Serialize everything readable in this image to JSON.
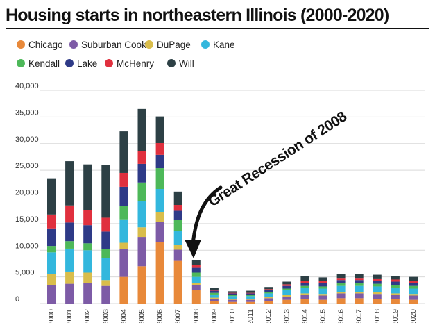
{
  "chart_data": {
    "type": "bar",
    "stacked": true,
    "title": "Housing starts in northeastern Illinois (2000-2020)",
    "xlabel": "",
    "ylabel": "",
    "ylim": [
      0,
      40000
    ],
    "yticks": [
      {
        "value": 0,
        "label": "0"
      },
      {
        "value": 5000,
        "label": "5,000"
      },
      {
        "value": 10000,
        "label": "10,000"
      },
      {
        "value": 15000,
        "label": "15,000"
      },
      {
        "value": 20000,
        "label": "20,000"
      },
      {
        "value": 25000,
        "label": "25,000"
      },
      {
        "value": 30000,
        "label": "30,000"
      },
      {
        "value": 35000,
        "label": "35,000"
      },
      {
        "value": 40000,
        "label": "40,000"
      }
    ],
    "grid": true,
    "legend_position": "top",
    "categories": [
      "2000",
      "2001",
      "2002",
      "2003",
      "2004",
      "2005",
      "2006",
      "2007",
      "2008",
      "2009",
      "2010",
      "2011",
      "2012",
      "2013",
      "2014",
      "2015",
      "2016",
      "2017",
      "2018",
      "2019",
      "2020"
    ],
    "series": [
      {
        "name": "Chicago",
        "color": "#E8893A",
        "values": [
          0,
          0,
          0,
          0,
          5000,
          7000,
          11500,
          8000,
          2500,
          500,
          300,
          300,
          500,
          700,
          800,
          700,
          1000,
          1000,
          900,
          800,
          700
        ]
      },
      {
        "name": "Suburban Cook",
        "color": "#7D5BA6",
        "values": [
          3400,
          3700,
          3800,
          3300,
          5200,
          5500,
          3800,
          2100,
          900,
          400,
          400,
          400,
          500,
          600,
          800,
          800,
          900,
          900,
          900,
          800,
          800
        ]
      },
      {
        "name": "DuPage",
        "color": "#D9BD4B",
        "values": [
          2200,
          2300,
          2000,
          1100,
          1200,
          1800,
          1900,
          900,
          400,
          200,
          200,
          200,
          200,
          300,
          300,
          300,
          300,
          300,
          300,
          300,
          300
        ]
      },
      {
        "name": "Kane",
        "color": "#33B7DD",
        "values": [
          4000,
          4300,
          4200,
          4100,
          4400,
          4900,
          4300,
          2600,
          1200,
          600,
          500,
          500,
          700,
          900,
          1000,
          1000,
          1100,
          1100,
          1100,
          1100,
          1000
        ]
      },
      {
        "name": "Kendall",
        "color": "#4DB859",
        "values": [
          1200,
          1400,
          1300,
          1700,
          2500,
          3500,
          3900,
          2100,
          800,
          300,
          200,
          200,
          200,
          300,
          400,
          400,
          500,
          500,
          500,
          500,
          500
        ]
      },
      {
        "name": "Lake",
        "color": "#2E3A87",
        "values": [
          3300,
          3500,
          3400,
          3300,
          3600,
          3500,
          2500,
          1700,
          900,
          400,
          300,
          300,
          400,
          500,
          600,
          600,
          600,
          600,
          600,
          600,
          600
        ]
      },
      {
        "name": "McHenry",
        "color": "#E0303E",
        "values": [
          2600,
          3200,
          2800,
          2600,
          2600,
          2400,
          2200,
          1100,
          500,
          200,
          100,
          100,
          200,
          300,
          400,
          400,
          400,
          400,
          400,
          400,
          400
        ]
      },
      {
        "name": "Will",
        "color": "#2D4045",
        "values": [
          6800,
          8300,
          8600,
          9900,
          7800,
          7900,
          5000,
          2500,
          900,
          300,
          300,
          400,
          400,
          500,
          800,
          700,
          700,
          700,
          700,
          700,
          700
        ]
      }
    ],
    "annotations": [
      {
        "text": "Great Recession of 2008",
        "target_category": "2008"
      }
    ]
  }
}
